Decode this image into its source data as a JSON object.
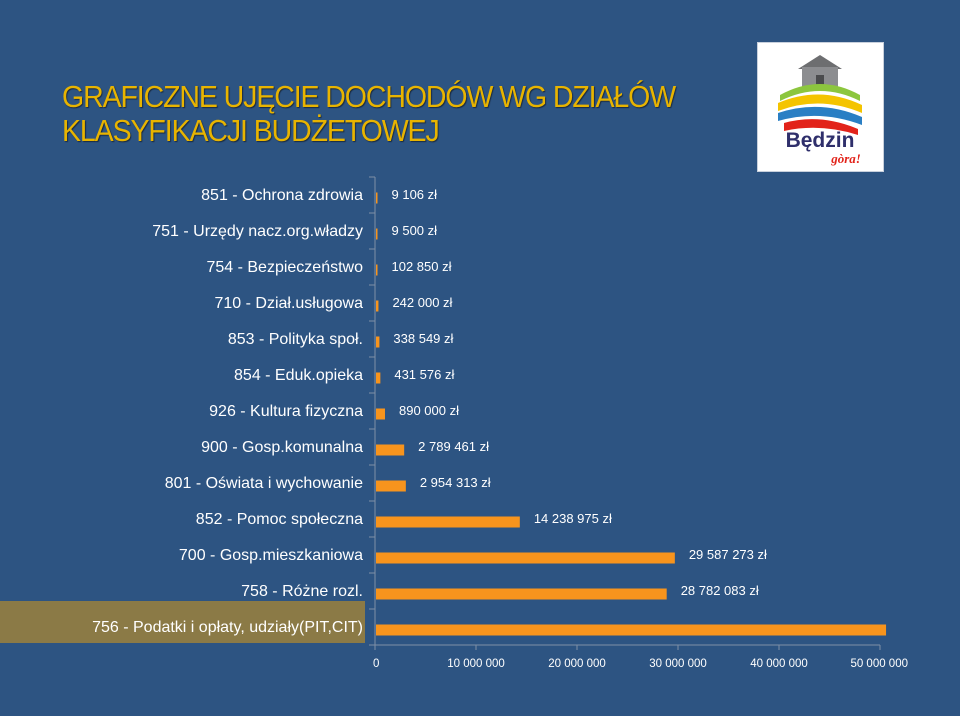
{
  "title": {
    "line1": "GRAFICZNE UJĘCIE DOCHODÓW WG DZIAŁÓW",
    "line2": "KLASYFIKACJI BUDŻETOWEJ"
  },
  "logo": {
    "text": "Będzin",
    "tagline": "gòra!"
  },
  "colors": {
    "background": "#2d5482",
    "title": "#e8b400",
    "bar": "#f7941d",
    "highlight": "#8b7a46"
  },
  "chart_data": {
    "type": "bar",
    "orientation": "horizontal",
    "categories": [
      "851 - Ochrona zdrowia",
      "751 - Urzędy nacz.org.władzy",
      "754 - Bezpieczeństwo",
      "710 - Dział.usługowa",
      "853 - Polityka społ.",
      "854 - Eduk.opieka",
      "926 - Kultura fizyczna",
      "900 - Gosp.komunalna",
      "801 - Oświata i wychowanie",
      "852 - Pomoc społeczna",
      "700 - Gosp.mieszkaniowa",
      "758 - Różne rozl.",
      "756 - Podatki i opłaty, udziały(PIT,CIT)"
    ],
    "values": [
      9106,
      9500,
      102850,
      242000,
      338549,
      431576,
      890000,
      2789461,
      2954313,
      14238975,
      29587273,
      28782083,
      50500000
    ],
    "value_labels": [
      "9 106 zł",
      "9 500 zł",
      "102 850 zł",
      "242 000 zł",
      "338 549 zł",
      "431 576 zł",
      "890 000 zł",
      "2 789 461 zł",
      "2 954 313 zł",
      "14 238 975 zł",
      "29 587 273 zł",
      "28 782 083 zł",
      ""
    ],
    "xlim": [
      0,
      50000000
    ],
    "xticks": [
      0,
      10000000,
      20000000,
      30000000,
      40000000,
      50000000
    ],
    "xtick_labels": [
      "0",
      "10 000 000",
      "20 000 000",
      "30 000 000",
      "40 000 000",
      "50 000 000"
    ],
    "highlighted_category": "756 - Podatki i opłaty, udziały(PIT,CIT)",
    "grid": false,
    "legend": "none"
  }
}
